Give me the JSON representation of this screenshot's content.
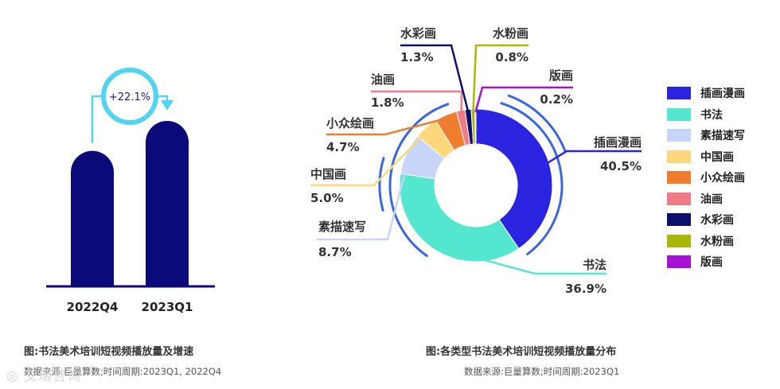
{
  "colors": {
    "bar": "#0b0a7a",
    "ring": "#4fd4f2",
    "outer_arc": "#3a66e0",
    "slices": [
      "#2a24e0",
      "#54e6cf",
      "#c7d6f8",
      "#fcd87a",
      "#f07c2e",
      "#ee7b86",
      "#0c0f6b",
      "#a9b807",
      "#a512d6"
    ]
  },
  "chart_data": [
    {
      "type": "bar",
      "categories": [
        "2022Q4",
        "2023Q1"
      ],
      "values": [
        100,
        122.1
      ],
      "growth_label": "+22.1%",
      "title": "图:书法美术培训短视频播放量及增速",
      "source": "数据来源:巨量算数;时间周期:2023Q1, 2022Q4"
    },
    {
      "type": "pie",
      "title": "图:各类型书法美术培训短视频播放量分布",
      "source": "数据来源:巨量算数;时间周期:2023Q1",
      "slices": [
        {
          "name": "插画漫画",
          "value": 40.5,
          "label": "40.5%"
        },
        {
          "name": "书法",
          "value": 36.9,
          "label": "36.9%"
        },
        {
          "name": "素描速写",
          "value": 8.7,
          "label": "8.7%"
        },
        {
          "name": "中国画",
          "value": 5.0,
          "label": "5.0%"
        },
        {
          "name": "小众绘画",
          "value": 4.7,
          "label": "4.7%"
        },
        {
          "name": "油画",
          "value": 1.8,
          "label": "1.8%"
        },
        {
          "name": "水彩画",
          "value": 1.3,
          "label": "1.3%"
        },
        {
          "name": "水粉画",
          "value": 0.8,
          "label": "0.8%"
        },
        {
          "name": "版画",
          "value": 0.2,
          "label": "0.2%"
        }
      ]
    }
  ],
  "watermark": "艾瑞咨询"
}
